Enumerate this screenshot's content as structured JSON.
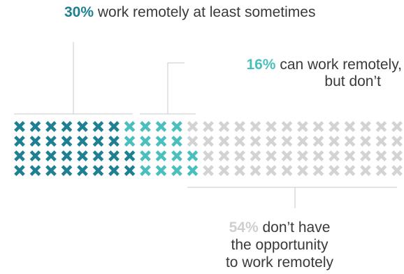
{
  "chart_data": {
    "type": "waffle",
    "rows": 4,
    "columns": 25,
    "total_icons": 100,
    "icon": "x-mark-icon",
    "series": [
      {
        "key": "remote",
        "percent": 30,
        "color": "#1f7f93",
        "pct_label": "30%",
        "label": "work remotely at least sometimes"
      },
      {
        "key": "can",
        "percent": 16,
        "color": "#4bbfbd",
        "pct_label": "16%",
        "label_line1": "can work remotely,",
        "label_line2": "but don’t"
      },
      {
        "key": "no",
        "percent": 54,
        "color": "#d3d3d3",
        "pct_label": "54%",
        "label_line1": "don’t have",
        "label_line2": "the opportunity",
        "label_line3": "to work remotely"
      }
    ]
  }
}
